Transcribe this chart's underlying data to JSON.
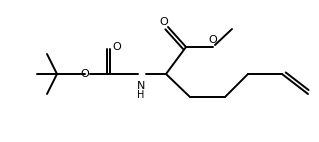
{
  "bg_color": "#ffffff",
  "lc": "#000000",
  "lw": 1.4,
  "figsize": [
    3.19,
    1.42
  ],
  "dpi": 100,
  "xlim": [
    0,
    319
  ],
  "ylim": [
    0,
    142
  ]
}
